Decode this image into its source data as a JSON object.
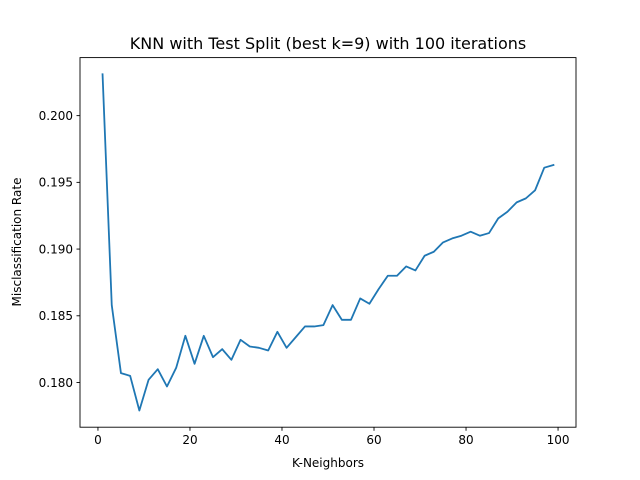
{
  "chart_data": {
    "type": "line",
    "title": "KNN with Test Split (best k=9) with 100 iterations",
    "xlabel": "K-Neighbors",
    "ylabel": "Misclassification Rate",
    "xlim": [
      -3.9,
      103.9
    ],
    "ylim": [
      0.17665,
      0.20435
    ],
    "xticks": [
      0,
      20,
      40,
      60,
      80,
      100
    ],
    "xtick_labels": [
      "0",
      "20",
      "40",
      "60",
      "80",
      "100"
    ],
    "yticks": [
      0.18,
      0.185,
      0.19,
      0.195,
      0.2
    ],
    "ytick_labels": [
      "0.180",
      "0.185",
      "0.190",
      "0.195",
      "0.200"
    ],
    "grid": false,
    "legend": "none",
    "series": [
      {
        "color": "#1f77b4",
        "x": [
          1,
          3,
          5,
          7,
          9,
          11,
          13,
          15,
          17,
          19,
          21,
          23,
          25,
          27,
          29,
          31,
          33,
          35,
          37,
          39,
          41,
          43,
          45,
          47,
          49,
          51,
          53,
          55,
          57,
          59,
          61,
          63,
          65,
          67,
          69,
          71,
          73,
          75,
          77,
          79,
          81,
          83,
          85,
          87,
          89,
          91,
          93,
          95,
          97,
          99
        ],
        "y": [
          0.2031,
          0.1858,
          0.1807,
          0.1805,
          0.1779,
          0.1802,
          0.181,
          0.1797,
          0.1811,
          0.1835,
          0.1814,
          0.1835,
          0.1819,
          0.1825,
          0.1817,
          0.1832,
          0.1827,
          0.1826,
          0.1824,
          0.1838,
          0.1826,
          0.1834,
          0.1842,
          0.1842,
          0.1843,
          0.1858,
          0.1847,
          0.1847,
          0.1863,
          0.1859,
          0.187,
          0.188,
          0.188,
          0.1887,
          0.1884,
          0.1895,
          0.1898,
          0.1905,
          0.1908,
          0.191,
          0.1913,
          0.191,
          0.1912,
          0.1923,
          0.1928,
          0.1935,
          0.1938,
          0.1944,
          0.1961,
          0.1963
        ]
      }
    ]
  }
}
